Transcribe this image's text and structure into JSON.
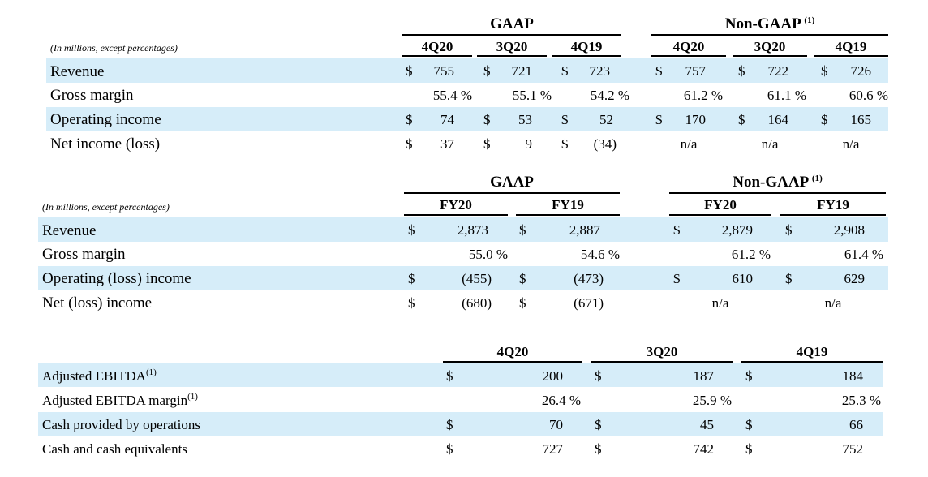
{
  "table1": {
    "note": "(In millions, except percentages)",
    "gaap_label": "GAAP",
    "nongaap_label": "Non-GAAP",
    "nongaap_note": "(1)",
    "columns": [
      "4Q20",
      "3Q20",
      "4Q19",
      "4Q20",
      "3Q20",
      "4Q19"
    ],
    "rows": [
      {
        "label": "Revenue",
        "cells": [
          {
            "cur": "$",
            "val": "755"
          },
          {
            "cur": "$",
            "val": "721"
          },
          {
            "cur": "$",
            "val": "723"
          },
          {
            "cur": "$",
            "val": "757"
          },
          {
            "cur": "$",
            "val": "722"
          },
          {
            "cur": "$",
            "val": "726"
          }
        ]
      },
      {
        "label": "Gross margin",
        "cells": [
          {
            "cur": "",
            "val": "55.4 %"
          },
          {
            "cur": "",
            "val": "55.1 %"
          },
          {
            "cur": "",
            "val": "54.2 %"
          },
          {
            "cur": "",
            "val": "61.2 %"
          },
          {
            "cur": "",
            "val": "61.1 %"
          },
          {
            "cur": "",
            "val": "60.6 %"
          }
        ]
      },
      {
        "label": "Operating income",
        "cells": [
          {
            "cur": "$",
            "val": "74"
          },
          {
            "cur": "$",
            "val": "53"
          },
          {
            "cur": "$",
            "val": "52"
          },
          {
            "cur": "$",
            "val": "170"
          },
          {
            "cur": "$",
            "val": "164"
          },
          {
            "cur": "$",
            "val": "165"
          }
        ]
      },
      {
        "label": "Net income (loss)",
        "cells": [
          {
            "cur": "$",
            "val": "37"
          },
          {
            "cur": "$",
            "val": "9"
          },
          {
            "cur": "$",
            "val": "(34)"
          },
          {
            "cur": "",
            "val": "n/a"
          },
          {
            "cur": "",
            "val": "n/a"
          },
          {
            "cur": "",
            "val": "n/a"
          }
        ]
      }
    ]
  },
  "table2": {
    "note": "(In millions, except percentages)",
    "gaap_label": "GAAP",
    "nongaap_label": "Non-GAAP",
    "nongaap_note": "(1)",
    "columns": [
      "FY20",
      "FY19",
      "FY20",
      "FY19"
    ],
    "rows": [
      {
        "label": "Revenue",
        "cells": [
          {
            "cur": "$",
            "val": "2,873"
          },
          {
            "cur": "$",
            "val": "2,887"
          },
          {
            "cur": "$",
            "val": "2,879"
          },
          {
            "cur": "$",
            "val": "2,908"
          }
        ]
      },
      {
        "label": "Gross margin",
        "cells": [
          {
            "cur": "",
            "val": "55.0 %"
          },
          {
            "cur": "",
            "val": "54.6 %"
          },
          {
            "cur": "",
            "val": "61.2 %"
          },
          {
            "cur": "",
            "val": "61.4 %"
          }
        ]
      },
      {
        "label": "Operating (loss) income",
        "cells": [
          {
            "cur": "$",
            "val": "(455)"
          },
          {
            "cur": "$",
            "val": "(473)"
          },
          {
            "cur": "$",
            "val": "610"
          },
          {
            "cur": "$",
            "val": "629"
          }
        ]
      },
      {
        "label": "Net (loss) income",
        "cells": [
          {
            "cur": "$",
            "val": "(680)"
          },
          {
            "cur": "$",
            "val": "(671)"
          },
          {
            "cur": "",
            "val": "n/a"
          },
          {
            "cur": "",
            "val": "n/a"
          }
        ]
      }
    ]
  },
  "table3": {
    "columns": [
      "4Q20",
      "3Q20",
      "4Q19"
    ],
    "rows": [
      {
        "label": "Adjusted EBITDA",
        "note": "(1)",
        "cells": [
          {
            "cur": "$",
            "val": "200"
          },
          {
            "cur": "$",
            "val": "187"
          },
          {
            "cur": "$",
            "val": "184"
          }
        ]
      },
      {
        "label": "Adjusted EBITDA margin",
        "note": "(1)",
        "cells": [
          {
            "cur": "",
            "val": "26.4 %"
          },
          {
            "cur": "",
            "val": "25.9 %"
          },
          {
            "cur": "",
            "val": "25.3 %"
          }
        ]
      },
      {
        "label": "Cash provided by operations",
        "note": "",
        "cells": [
          {
            "cur": "$",
            "val": "70"
          },
          {
            "cur": "$",
            "val": "45"
          },
          {
            "cur": "$",
            "val": "66"
          }
        ]
      },
      {
        "label": "Cash and cash equivalents",
        "note": "",
        "cells": [
          {
            "cur": "$",
            "val": "727"
          },
          {
            "cur": "$",
            "val": "742"
          },
          {
            "cur": "$",
            "val": "752"
          }
        ]
      }
    ]
  },
  "colors": {
    "band": "#d6edf9",
    "text": "#000000",
    "rule": "#000000"
  }
}
